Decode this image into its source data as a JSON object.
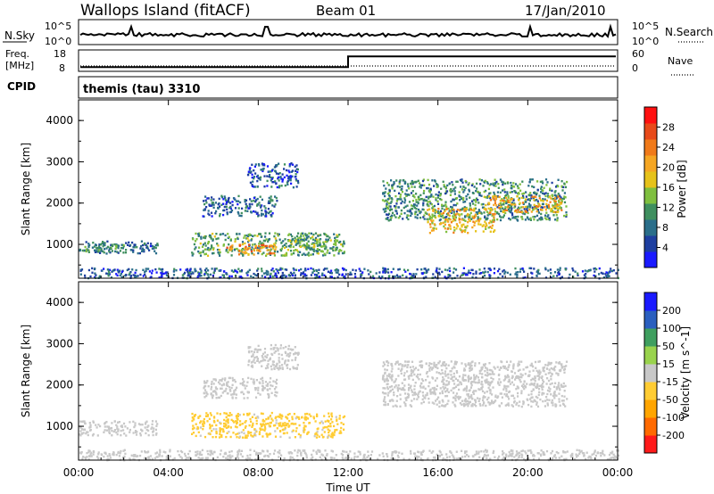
{
  "header": {
    "station": "Wallops Island (fitACF)",
    "beam": "Beam 01",
    "date": "17/Jan/2010",
    "program": "themis (tau) 3310"
  },
  "aux_panels": {
    "nsky": {
      "label": "N.Sky",
      "ticks": [
        "10^5",
        "10^0"
      ],
      "right_label": "N.Search",
      "right_ticks": [
        "10^5",
        "10^0"
      ]
    },
    "freq": {
      "label_lines": [
        "Freq.",
        "[MHz]"
      ],
      "ticks": [
        "18",
        "8"
      ],
      "right_label": "Nave",
      "right_ticks": [
        "60",
        "0"
      ]
    },
    "cpid": {
      "label": "CPID"
    }
  },
  "colors": {
    "power_scale": [
      "#1a1aff",
      "#1e3fa0",
      "#2a6e8a",
      "#3f8f5f",
      "#7fbf3f",
      "#e6c21a",
      "#f5a623",
      "#f07a1a",
      "#e84a1a",
      "#ff1010"
    ],
    "velocity_scale": [
      "#ff1a1a",
      "#ff6a00",
      "#ffa500",
      "#ffcc33",
      "#c8c8c8",
      "#99d34d",
      "#3f9f5f",
      "#2a5fbf",
      "#1a1aff"
    ]
  },
  "chart_data": [
    {
      "type": "heatmap",
      "name": "power",
      "ylabel": "Slant Range [km]",
      "ylim": [
        180,
        4500
      ],
      "xlim": [
        "00:00",
        "24:00"
      ],
      "y_ticks": [
        "1000",
        "2000",
        "3000",
        "4000"
      ],
      "colorbar": {
        "label": "Power [dB]",
        "ticks": [
          "4",
          "8",
          "12",
          "16",
          "20",
          "24",
          "28"
        ],
        "range": [
          0,
          32
        ]
      },
      "regions": [
        {
          "t": [
            0.0,
            3.5
          ],
          "r": [
            800,
            1100
          ],
          "v": 8
        },
        {
          "t": [
            0.2,
            2.0
          ],
          "r": [
            850,
            1050
          ],
          "v": 11
        },
        {
          "t": [
            5.5,
            8.8
          ],
          "r": [
            1700,
            2200
          ],
          "v": 7
        },
        {
          "t": [
            7.5,
            9.8
          ],
          "r": [
            2400,
            3000
          ],
          "v": 6
        },
        {
          "t": [
            5.0,
            11.8
          ],
          "r": [
            750,
            1300
          ],
          "v": 12
        },
        {
          "t": [
            6.5,
            8.8
          ],
          "r": [
            760,
            1020
          ],
          "v": 23
        },
        {
          "t": [
            9.0,
            11.5
          ],
          "r": [
            850,
            1150
          ],
          "v": 13
        },
        {
          "t": [
            13.5,
            21.7
          ],
          "r": [
            1600,
            2600
          ],
          "v": 10
        },
        {
          "t": [
            15.5,
            18.5
          ],
          "r": [
            1300,
            1900
          ],
          "v": 19
        },
        {
          "t": [
            18.0,
            21.5
          ],
          "r": [
            1800,
            2200
          ],
          "v": 20
        },
        {
          "t": [
            0.0,
            24.0
          ],
          "r": [
            200,
            450
          ],
          "v": 6
        }
      ]
    },
    {
      "type": "heatmap",
      "name": "velocity",
      "ylabel": "Slant Range [km]",
      "xlabel": "Time UT",
      "ylim": [
        180,
        4500
      ],
      "xlim": [
        "00:00",
        "24:00"
      ],
      "x_ticks": [
        "00:00",
        "04:00",
        "08:00",
        "12:00",
        "16:00",
        "20:00",
        "00:00"
      ],
      "y_ticks": [
        "1000",
        "2000",
        "3000",
        "4000"
      ],
      "colorbar": {
        "label": "Velocity [m s^-1]",
        "ticks": [
          "200",
          "100",
          "50",
          "15",
          "-15",
          "-50",
          "-100",
          "-200"
        ],
        "range": [
          -250,
          250
        ]
      },
      "regions": [
        {
          "t": [
            0.0,
            3.5
          ],
          "r": [
            800,
            1150
          ],
          "v": 0
        },
        {
          "t": [
            5.5,
            8.8
          ],
          "r": [
            1700,
            2200
          ],
          "v": 0
        },
        {
          "t": [
            7.5,
            9.8
          ],
          "r": [
            2400,
            3000
          ],
          "v": 0
        },
        {
          "t": [
            5.0,
            11.8
          ],
          "r": [
            750,
            1350
          ],
          "v": -40
        },
        {
          "t": [
            13.5,
            21.7
          ],
          "r": [
            1500,
            2600
          ],
          "v": 0
        },
        {
          "t": [
            0.0,
            24.0
          ],
          "r": [
            200,
            450
          ],
          "v": 0
        }
      ]
    }
  ],
  "timeline": {
    "freq_step_time": "12:00",
    "freq_before": 10,
    "freq_after": 15
  }
}
